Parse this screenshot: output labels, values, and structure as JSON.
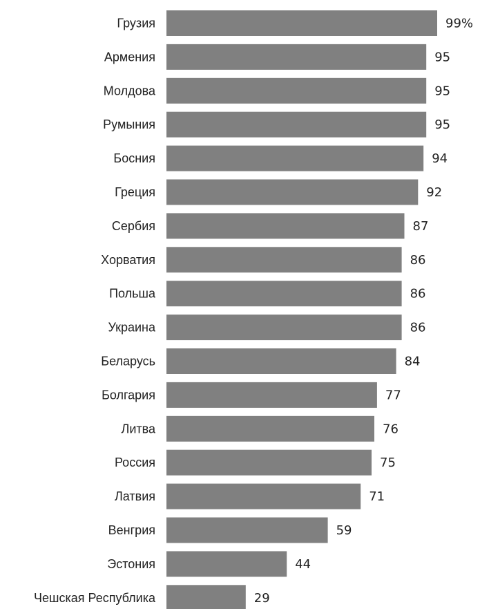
{
  "chart_data": {
    "type": "bar",
    "orientation": "horizontal",
    "title": "",
    "xlabel": "",
    "ylabel": "",
    "value_suffix_first": "%",
    "xlim": [
      0,
      100
    ],
    "grid": false,
    "legend": "none",
    "bar_color": "#808080",
    "text_color": "#222222",
    "categories": [
      "Грузия",
      "Армения",
      "Молдова",
      "Румыния",
      "Босния",
      "Греция",
      "Сербия",
      "Хорватия",
      "Польша",
      "Украина",
      "Беларусь",
      "Болгария",
      "Литва",
      "Россия",
      "Латвия",
      "Венгрия",
      "Эстония",
      "Чешская Республика"
    ],
    "values": [
      99,
      95,
      95,
      95,
      94,
      92,
      87,
      86,
      86,
      86,
      84,
      77,
      76,
      75,
      71,
      59,
      44,
      29
    ],
    "value_labels": [
      "99%",
      "95",
      "95",
      "95",
      "94",
      "92",
      "87",
      "86",
      "86",
      "86",
      "84",
      "77",
      "76",
      "75",
      "71",
      "59",
      "44",
      "29"
    ]
  }
}
